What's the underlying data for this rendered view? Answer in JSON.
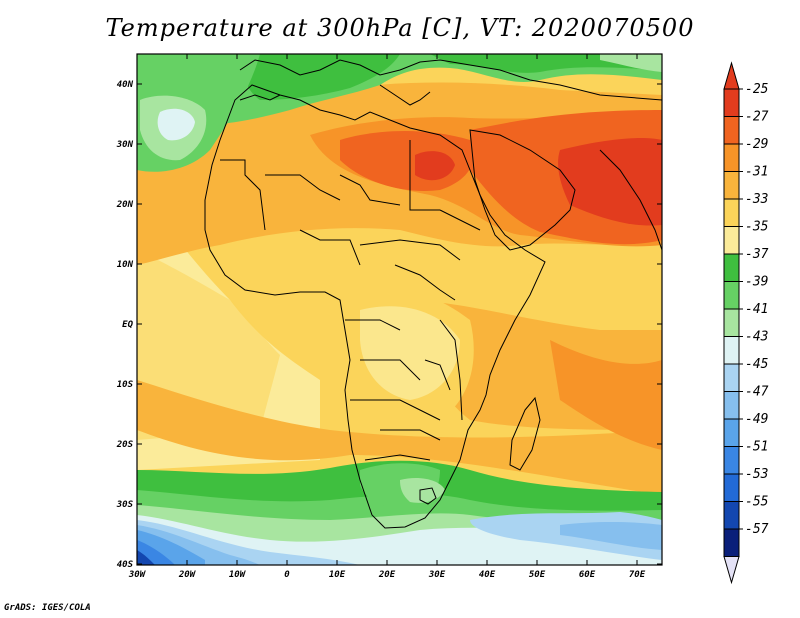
{
  "title": "Temperature at 300hPa [C], VT: 2020070500",
  "credit": "GrADS: IGES/COLA",
  "axes": {
    "x_ticks": [
      "30W",
      "20W",
      "10W",
      "0",
      "10E",
      "20E",
      "30E",
      "40E",
      "50E",
      "60E",
      "70E"
    ],
    "y_ticks": [
      "40N",
      "30N",
      "20N",
      "10N",
      "EQ",
      "10S",
      "20S",
      "30S",
      "40S"
    ]
  },
  "colorbar": {
    "labels": [
      "-25",
      "-27",
      "-29",
      "-31",
      "-33",
      "-35",
      "-37",
      "-39",
      "-41",
      "-43",
      "-45",
      "-47",
      "-49",
      "-51",
      "-53",
      "-55",
      "-57"
    ],
    "colors": [
      "#e23c1e",
      "#f06420",
      "#f79428",
      "#f9b43c",
      "#fbd45a",
      "#fbeb9a",
      "#3fbf3f",
      "#66d164",
      "#a8e5a0",
      "#dff3f4",
      "#aad4f2",
      "#86bfee",
      "#5aa4ea",
      "#3a86e4",
      "#226ad6",
      "#1347b0",
      "#0a1f7a"
    ],
    "over_color": "#e23c1e",
    "under_color": "#e4e2f6"
  }
}
